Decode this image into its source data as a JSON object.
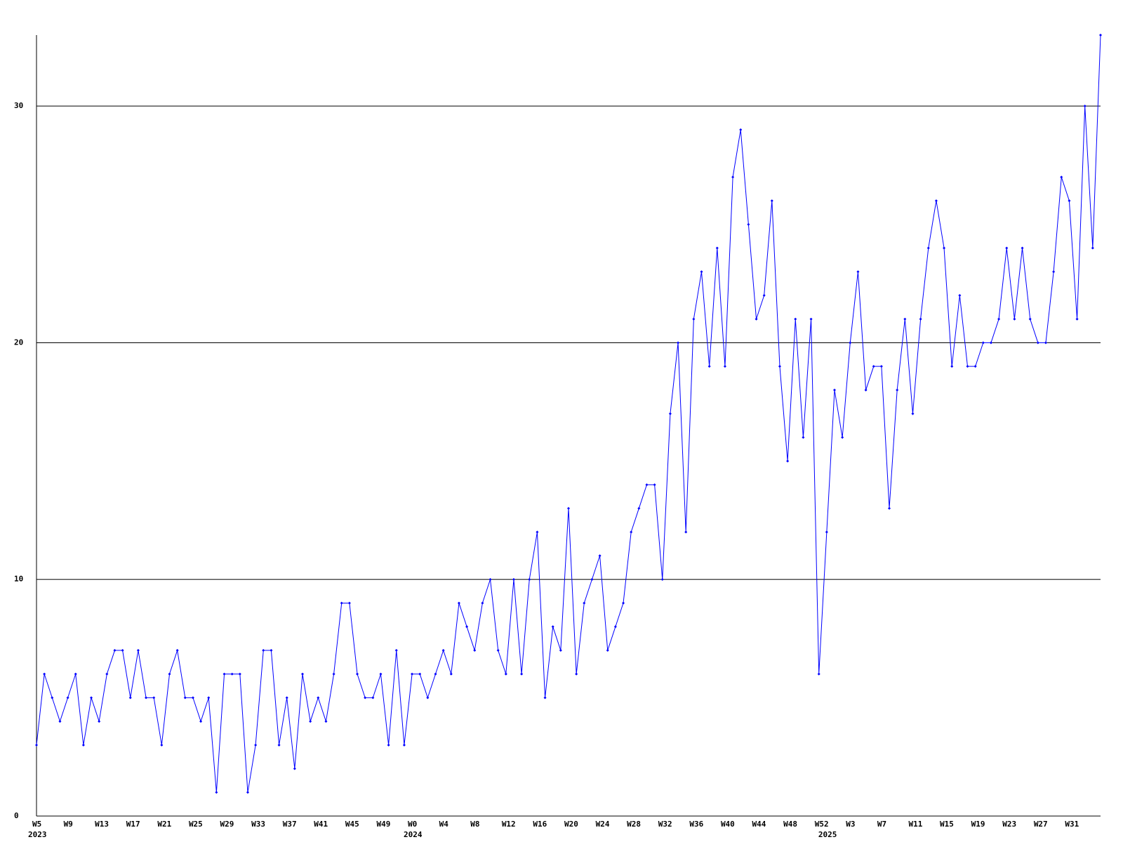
{
  "chart_data": {
    "type": "line",
    "categories": [
      "W5",
      null,
      null,
      null,
      "W9",
      null,
      null,
      null,
      "W13",
      null,
      null,
      null,
      "W17",
      null,
      null,
      null,
      "W21",
      null,
      null,
      null,
      "W25",
      null,
      null,
      null,
      "W29",
      null,
      null,
      null,
      "W33",
      null,
      null,
      null,
      "W37",
      null,
      null,
      null,
      "W41",
      null,
      null,
      null,
      "W45",
      null,
      null,
      null,
      "W49",
      null,
      null,
      null,
      "W0",
      null,
      null,
      null,
      "W4",
      null,
      null,
      null,
      "W8",
      null,
      null,
      null,
      "W12",
      null,
      null,
      null,
      "W16",
      null,
      null,
      null,
      "W20",
      null,
      null,
      null,
      "W24",
      null,
      null,
      null,
      "W28",
      null,
      null,
      null,
      "W32",
      null,
      null,
      null,
      "W36",
      null,
      null,
      null,
      "W40",
      null,
      null,
      null,
      "W44",
      null,
      null,
      null,
      "W48",
      null,
      null,
      null,
      "W52",
      null,
      null,
      null,
      "W3",
      null,
      null,
      null,
      "W7",
      null,
      null,
      null,
      "W11",
      null,
      null,
      null,
      "W15",
      null,
      null,
      null,
      "W19",
      null,
      null,
      null,
      "W23",
      null,
      null,
      null,
      "W27",
      null,
      null,
      null,
      "W31",
      null,
      null,
      null,
      null
    ],
    "year_labels": [
      "2023",
      null,
      null,
      null,
      null,
      null,
      null,
      null,
      null,
      null,
      null,
      null,
      null,
      null,
      null,
      null,
      null,
      null,
      null,
      null,
      null,
      null,
      null,
      null,
      null,
      null,
      null,
      null,
      null,
      null,
      null,
      null,
      null,
      null,
      null,
      null,
      null,
      null,
      null,
      null,
      null,
      null,
      null,
      null,
      null,
      null,
      null,
      null,
      "2024",
      null,
      null,
      null,
      null,
      null,
      null,
      null,
      null,
      null,
      null,
      null,
      null,
      null,
      null,
      null,
      null,
      null,
      null,
      null,
      null,
      null,
      null,
      null,
      null,
      null,
      null,
      null,
      null,
      null,
      null,
      null,
      null,
      null,
      null,
      null,
      null,
      null,
      null,
      null,
      null,
      null,
      null,
      null,
      null,
      null,
      null,
      null,
      null,
      null,
      null,
      null,
      null,
      "2025",
      null,
      null,
      null,
      null,
      null,
      null,
      null,
      null,
      null,
      null,
      null,
      null,
      null,
      null,
      null,
      null,
      null,
      null,
      null,
      null,
      null,
      null,
      null,
      null,
      null,
      null,
      null,
      null,
      null,
      null,
      null,
      null,
      null,
      null,
      null
    ],
    "series": [
      {
        "color": "#0000ff",
        "values": [
          3,
          6,
          5,
          4,
          5,
          6,
          3,
          5,
          4,
          6,
          7,
          7,
          5,
          7,
          5,
          5,
          3,
          6,
          7,
          5,
          5,
          4,
          5,
          1,
          6,
          6,
          6,
          1,
          3,
          7,
          7,
          3,
          5,
          2,
          6,
          4,
          5,
          4,
          6,
          9,
          9,
          6,
          5,
          5,
          6,
          3,
          7,
          3,
          6,
          6,
          5,
          6,
          7,
          6,
          9,
          8,
          7,
          9,
          10,
          7,
          6,
          10,
          6,
          10,
          12,
          5,
          8,
          7,
          13,
          6,
          9,
          10,
          11,
          7,
          8,
          9,
          12,
          13,
          14,
          14,
          10,
          17,
          20,
          12,
          21,
          23,
          19,
          24,
          19,
          27,
          29,
          25,
          21,
          22,
          26,
          19,
          15,
          21,
          16,
          21,
          6,
          12,
          18,
          16,
          20,
          23,
          18,
          19,
          19,
          13,
          18,
          21,
          17,
          21,
          24,
          26,
          24,
          19,
          22,
          19,
          19,
          20,
          20,
          21,
          24,
          21,
          24,
          21,
          20,
          20,
          23,
          27,
          26,
          21,
          30,
          24,
          33
        ]
      }
    ],
    "ylim": [
      0,
      33
    ],
    "yticks": [
      0,
      10,
      20,
      30
    ],
    "grid": true
  }
}
